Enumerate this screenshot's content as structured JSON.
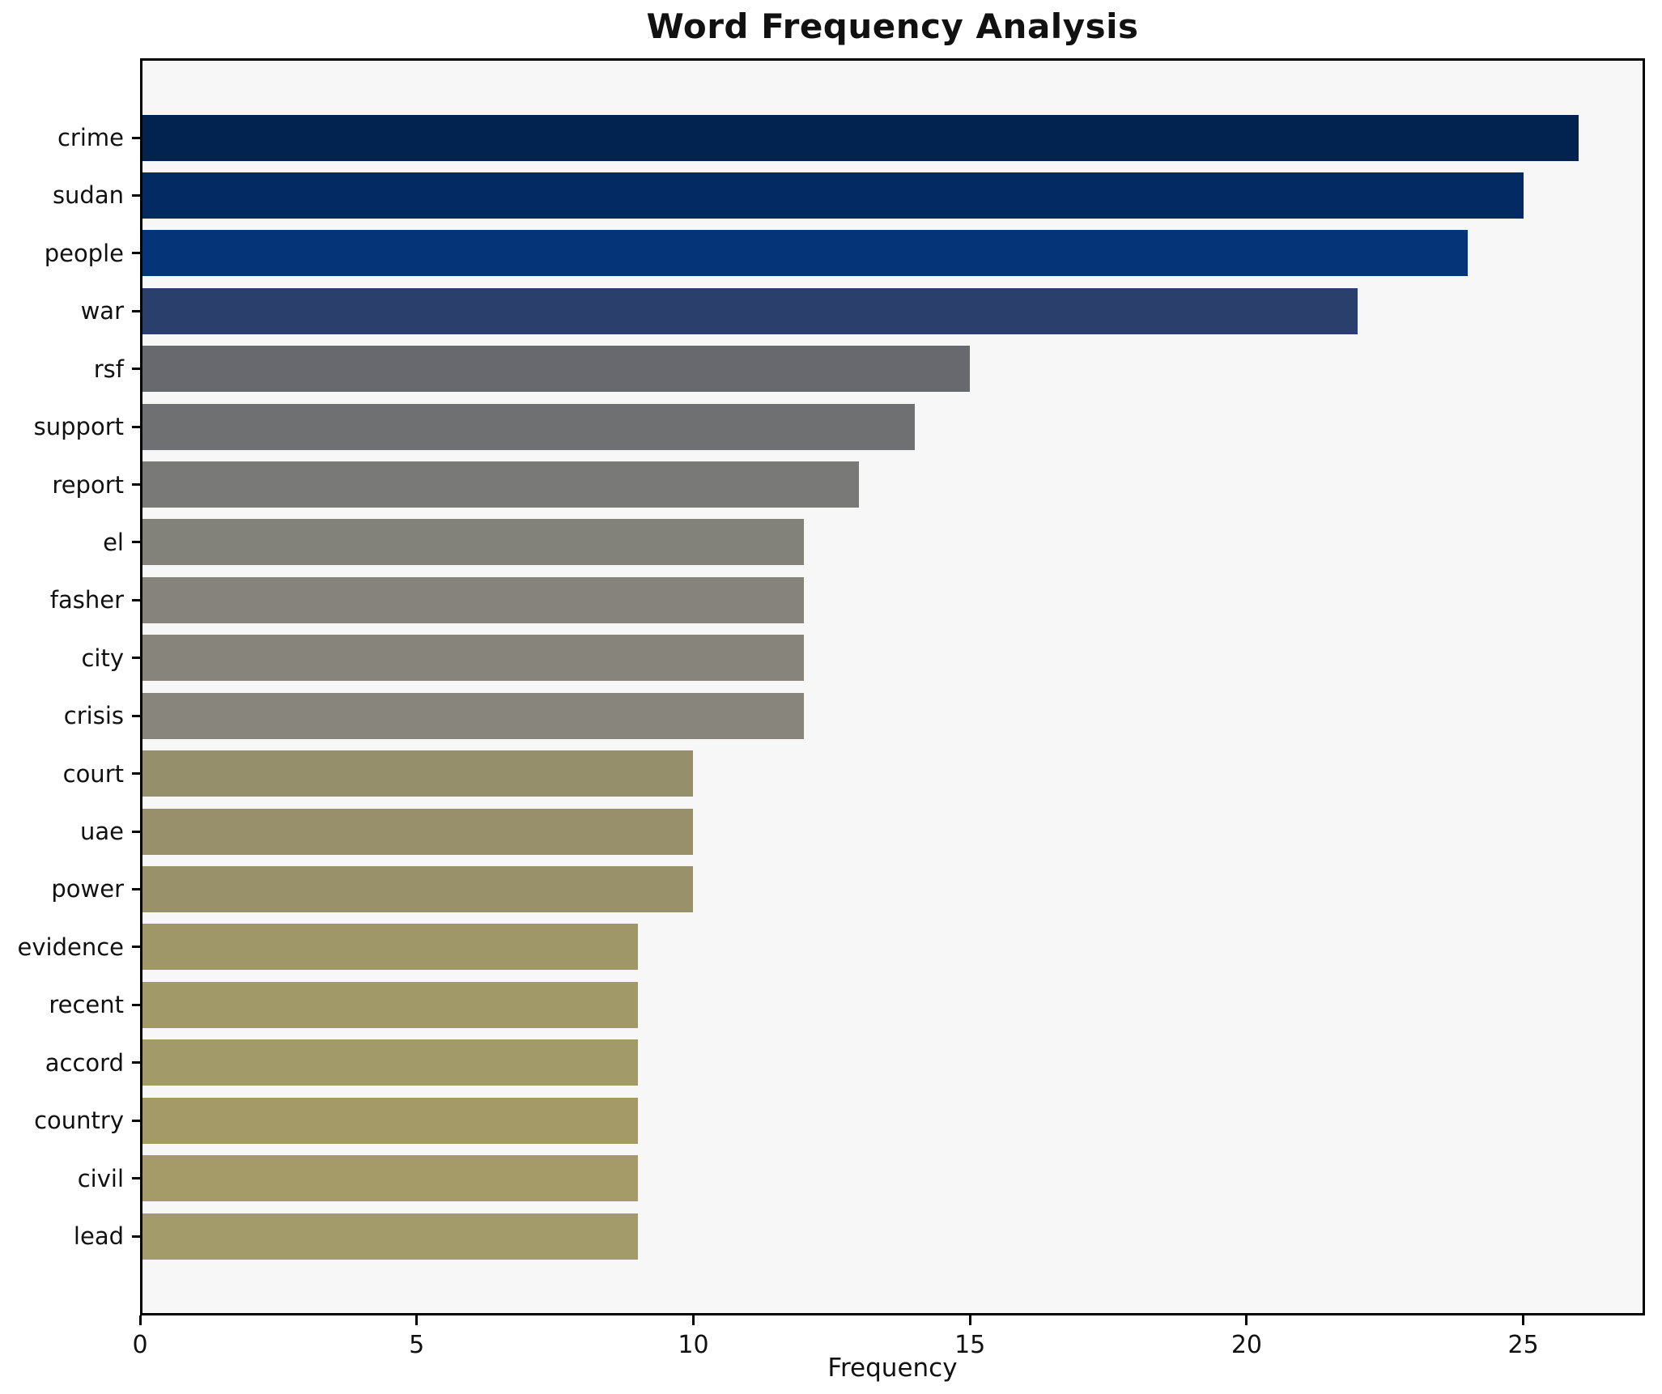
{
  "chart_data": {
    "type": "bar",
    "orientation": "horizontal",
    "title": "Word Frequency Analysis",
    "xlabel": "Frequency",
    "ylabel": "",
    "categories": [
      "crime",
      "sudan",
      "people",
      "war",
      "rsf",
      "support",
      "report",
      "el",
      "fasher",
      "city",
      "crisis",
      "court",
      "uae",
      "power",
      "evidence",
      "recent",
      "accord",
      "country",
      "civil",
      "lead"
    ],
    "values": [
      26,
      25,
      24,
      22,
      15,
      14,
      13,
      12,
      12,
      12,
      12,
      10,
      10,
      10,
      9,
      9,
      9,
      9,
      9,
      9
    ],
    "bar_colors": [
      "#022350",
      "#032a62",
      "#053478",
      "#2b3f6d",
      "#67696f",
      "#6e7072",
      "#797a77",
      "#82817a",
      "#85837b",
      "#86847b",
      "#87857c",
      "#968f6c",
      "#97906b",
      "#98916a",
      "#9f9768",
      "#a19968",
      "#a29a68",
      "#a39a68",
      "#a49b69",
      "#a49b6a",
      "#ignored"
    ],
    "xticks": [
      0,
      5,
      10,
      15,
      20,
      25
    ],
    "xlim": [
      0,
      27.2
    ],
    "grid": false,
    "legend": null,
    "plot_background": "#f7f7f8",
    "figure_background": "#ffffff",
    "spine_color": "#000000"
  }
}
